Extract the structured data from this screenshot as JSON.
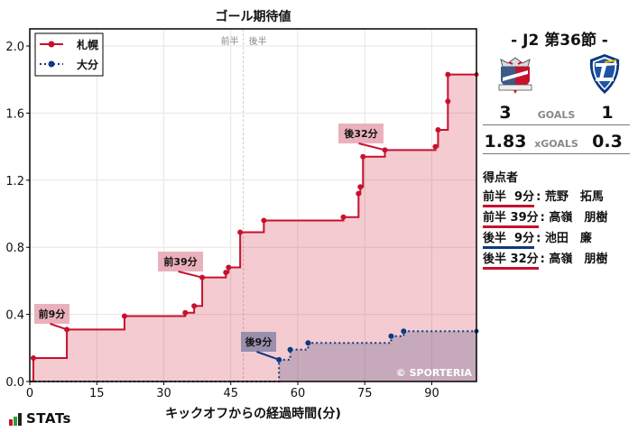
{
  "chart_data": {
    "type": "line",
    "subtype": "step",
    "title": "ゴール期待値",
    "xlabel": "キックオフからの経過時間(分)",
    "ylabel": "",
    "xlim": [
      0,
      100
    ],
    "ylim": [
      0,
      2.1
    ],
    "xticks": [
      0,
      15,
      30,
      45,
      60,
      75,
      90
    ],
    "yticks": [
      0.0,
      0.4,
      0.8,
      1.2,
      1.6,
      2.0
    ],
    "ytick_labels": [
      "0.0",
      "0.4",
      "0.8",
      "1.2",
      "1.6",
      "2.0"
    ],
    "grid": true,
    "legend_position": "upper left",
    "halftime_marker": {
      "x": 47.8,
      "left_label": "前半",
      "right_label": "後半"
    },
    "series": [
      {
        "name": "札幌",
        "color": "#c8102e",
        "fill": "#f2cdd5",
        "linestyle": "solid",
        "points": [
          [
            0,
            0
          ],
          [
            0.8,
            0.14
          ],
          [
            8.3,
            0.31
          ],
          [
            21.2,
            0.39
          ],
          [
            34.8,
            0.41
          ],
          [
            36.8,
            0.45
          ],
          [
            38.6,
            0.62
          ],
          [
            43.9,
            0.65
          ],
          [
            44.5,
            0.68
          ],
          [
            47.1,
            0.89
          ],
          [
            52.4,
            0.96
          ],
          [
            70.2,
            0.98
          ],
          [
            73.6,
            1.12
          ],
          [
            74.0,
            1.16
          ],
          [
            74.6,
            1.34
          ],
          [
            79.5,
            1.38
          ],
          [
            90.8,
            1.4
          ],
          [
            91.4,
            1.5
          ],
          [
            93.6,
            1.67
          ],
          [
            93.6,
            1.83
          ],
          [
            100,
            1.83
          ]
        ]
      },
      {
        "name": "大分",
        "color": "#0b3a82",
        "fill": "#c4a9b9",
        "linestyle": "dotted",
        "points": [
          [
            0,
            0
          ],
          [
            55.8,
            0.13
          ],
          [
            58.3,
            0.19
          ],
          [
            62.3,
            0.23
          ],
          [
            80.9,
            0.27
          ],
          [
            83.7,
            0.3
          ],
          [
            100,
            0.3
          ]
        ]
      }
    ],
    "annotations": [
      {
        "text": "前9分",
        "x": 8.3,
        "y": 0.31,
        "team": "札幌"
      },
      {
        "text": "前39分",
        "x": 38.6,
        "y": 0.62,
        "team": "札幌"
      },
      {
        "text": "後32分",
        "x": 79.5,
        "y": 1.38,
        "team": "札幌"
      },
      {
        "text": "後9分",
        "x": 55.8,
        "y": 0.13,
        "team": "大分"
      }
    ],
    "watermark": "© SPORTERIA"
  },
  "match": {
    "title": "- J2 第36節 -",
    "home": {
      "name": "札幌",
      "logo": "consadole-crest-icon",
      "goals": "3",
      "xg": "1.83",
      "color": "#c8102e"
    },
    "away": {
      "name": "大分",
      "logo": "trinita-crest-icon",
      "goals": "1",
      "xg": "0.3",
      "color": "#0b3a82"
    },
    "goals_label": "GOALS",
    "xg_label": "xGOALS"
  },
  "scorers": {
    "title": "得点者",
    "items": [
      {
        "time": "前半  9分",
        "name": ": 荒野　拓馬",
        "color": "#c8102e"
      },
      {
        "time": "前半 39分",
        "name": ": 高嶺　朋樹",
        "color": "#c8102e"
      },
      {
        "time": "後半  9分",
        "name": ": 池田　廉",
        "color": "#0b3a82"
      },
      {
        "time": "後半 32分",
        "name": ": 高嶺　朋樹",
        "color": "#c8102e"
      }
    ]
  },
  "brand": {
    "label": "STATs",
    "bar_colors": [
      "#d0102e",
      "#2e9e3e",
      "#222222"
    ]
  }
}
